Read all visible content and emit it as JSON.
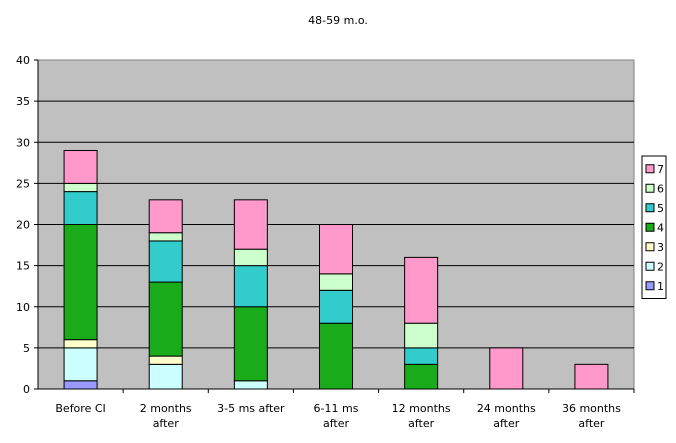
{
  "chart_data": {
    "type": "bar",
    "stacked": true,
    "title": "48-59 m.o.",
    "xlabel": "",
    "ylabel": "",
    "ylim": [
      0,
      40
    ],
    "yticks": [
      0,
      5,
      10,
      15,
      20,
      25,
      30,
      35,
      40
    ],
    "grid": true,
    "legend_position": "right",
    "plot_background": "#c0c0c0",
    "categories": [
      [
        "Before CI"
      ],
      [
        "2 months",
        "after"
      ],
      [
        "3-5 ms after"
      ],
      [
        "6-11 ms",
        "after"
      ],
      [
        "12 months",
        "after"
      ],
      [
        "24 months",
        "after"
      ],
      [
        "36 months",
        "after"
      ]
    ],
    "series": [
      {
        "name": "1",
        "color": "#9999ff",
        "values": [
          1,
          0,
          0,
          0,
          0,
          0,
          0
        ]
      },
      {
        "name": "2",
        "color": "#ccffff",
        "values": [
          4,
          3,
          1,
          0,
          0,
          0,
          0
        ]
      },
      {
        "name": "3",
        "color": "#ffffcc",
        "values": [
          1,
          1,
          0,
          0,
          0,
          0,
          0
        ]
      },
      {
        "name": "4",
        "color": "#1aab1a",
        "values": [
          14,
          9,
          9,
          8,
          3,
          0,
          0
        ]
      },
      {
        "name": "5",
        "color": "#33cccc",
        "values": [
          4,
          5,
          5,
          4,
          2,
          0,
          0
        ]
      },
      {
        "name": "6",
        "color": "#ccffcc",
        "values": [
          1,
          1,
          2,
          2,
          3,
          0,
          0
        ]
      },
      {
        "name": "7",
        "color": "#ff99cc",
        "values": [
          4,
          4,
          6,
          6,
          8,
          5,
          3
        ]
      }
    ]
  }
}
